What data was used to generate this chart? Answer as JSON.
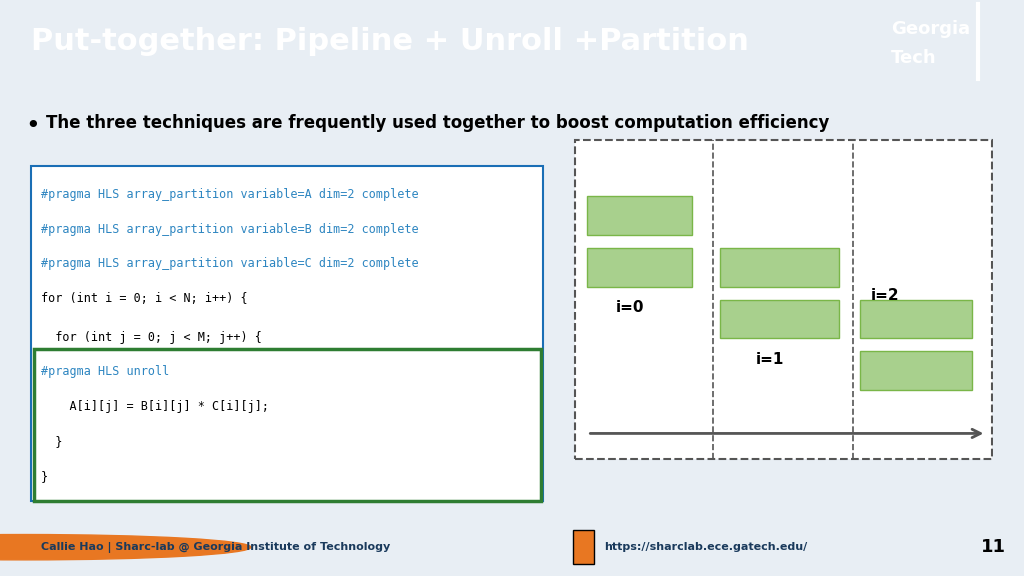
{
  "title": "Put-together: Pipeline + Unroll +Partition",
  "title_bg": "#1a3a5c",
  "title_fg": "#ffffff",
  "body_bg": "#f0f4f8",
  "bullet": "The three techniques are frequently used together to boost computation efficiency",
  "code_outer_border": "#1a6eb5",
  "code_inner_border": "#2e7d32",
  "code_lines_blue": [
    "#pragma HLS array_partition variable=A dim=2 complete",
    "#pragma HLS array_partition variable=B dim=2 complete",
    "#pragma HLS array_partition variable=C dim=2 complete"
  ],
  "code_line_black1": "for (int i = 0; i < N; i++) {",
  "code_lines_inner": [
    "  for (int j = 0; j < M; j++) {",
    "#pragma HLS unroll",
    "    A[i][j] = B[i][j] * C[i][j];",
    "  }"
  ],
  "code_line_black2": "}",
  "bar_color": "#a8d08d",
  "bar_color_edge": "#7ab648",
  "diagram_bg": "#ffffff",
  "dashed_border_color": "#555555",
  "dashed_vert_color": "#555555",
  "arrow_color": "#555555",
  "label_i0": "i=0",
  "label_i1": "i=1",
  "label_i2": "i=2",
  "footer_left": "Callie Hao | Sharc-lab @ Georgia Institute of Technology",
  "footer_right": "https://sharclab.ece.gatech.edu/",
  "footer_page": "11",
  "gt_logo_color": "#1a3a5c"
}
